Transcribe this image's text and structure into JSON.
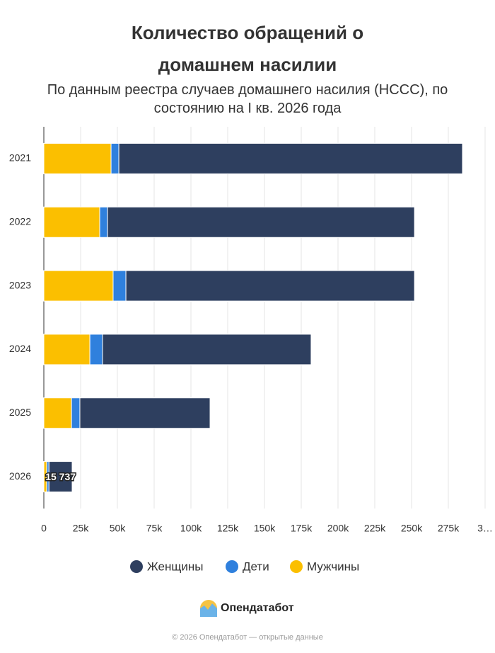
{
  "chart_data": {
    "type": "stacked_bar_horizontal",
    "title": "Количество обращений о домашнем насилии",
    "subtitle": "По данным реестра случаев домашнего насилия (НССС), по состоянию на I кв. 2026 года",
    "categories": [
      "2021",
      "2022",
      "2023",
      "2024",
      "2025",
      "2026"
    ],
    "series": [
      {
        "name": "Мужчины",
        "color": "#fbbf00",
        "values": [
          45700,
          38000,
          47100,
          31300,
          18800,
          2000
        ]
      },
      {
        "name": "Дети",
        "color": "#2f80dd",
        "values": [
          5300,
          5300,
          8700,
          8600,
          5700,
          1500
        ]
      },
      {
        "name": "Женщины",
        "color": "#2e3f5f",
        "values": [
          233600,
          208700,
          196200,
          141800,
          88500,
          15737
        ],
        "value_labels": [
          null,
          null,
          null,
          null,
          null,
          "15 737"
        ]
      }
    ],
    "legend_order": [
      "Женщины",
      "Дети",
      "Мужчины"
    ],
    "xlim": [
      0,
      300000
    ],
    "xticks": [
      0,
      {
        "value": 25000,
        "label": "25k"
      },
      {
        "value": 50000,
        "label": "50k"
      },
      {
        "value": 75000,
        "label": "75k"
      },
      {
        "value": 100000,
        "label": "100k"
      },
      {
        "value": 125000,
        "label": "125k"
      },
      {
        "value": 150000,
        "label": "150k"
      },
      {
        "value": 175000,
        "label": "175k"
      },
      {
        "value": 200000,
        "label": "200k"
      },
      {
        "value": 225000,
        "label": "225k"
      },
      {
        "value": 250000,
        "label": "250k"
      },
      {
        "value": 275000,
        "label": "275k"
      },
      {
        "value": 300000,
        "label": "3…"
      }
    ],
    "grid": true,
    "legend": "bottom"
  },
  "brand": "Опендатабот",
  "copyright": "© 2026 Опендатабот — открытые данные"
}
